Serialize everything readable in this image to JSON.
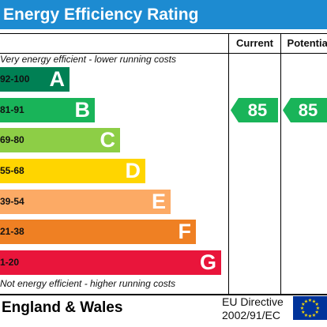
{
  "title": "Energy Efficiency Rating",
  "columns": {
    "current": "Current",
    "potential": "Potential"
  },
  "notes": {
    "top": "Very energy efficient - lower running costs",
    "bottom": "Not energy efficient - higher running costs"
  },
  "bands": [
    {
      "range": "92-100",
      "letter": "A",
      "color": "#008054"
    },
    {
      "range": "81-91",
      "letter": "B",
      "color": "#19b459"
    },
    {
      "range": "69-80",
      "letter": "C",
      "color": "#8dce46"
    },
    {
      "range": "55-68",
      "letter": "D",
      "color": "#ffd500"
    },
    {
      "range": "39-54",
      "letter": "E",
      "color": "#fcaa65"
    },
    {
      "range": "21-38",
      "letter": "F",
      "color": "#ef8023"
    },
    {
      "range": "1-20",
      "letter": "G",
      "color": "#e9153b"
    }
  ],
  "ratings": {
    "current": {
      "value": "85",
      "band": "B",
      "color": "#19b459"
    },
    "potential": {
      "value": "85",
      "band": "B",
      "color": "#19b459"
    }
  },
  "footer": {
    "region": "England & Wales",
    "directive_line1": "EU Directive",
    "directive_line2": "2002/91/EC",
    "flag_icon": "eu-flag-icon"
  }
}
